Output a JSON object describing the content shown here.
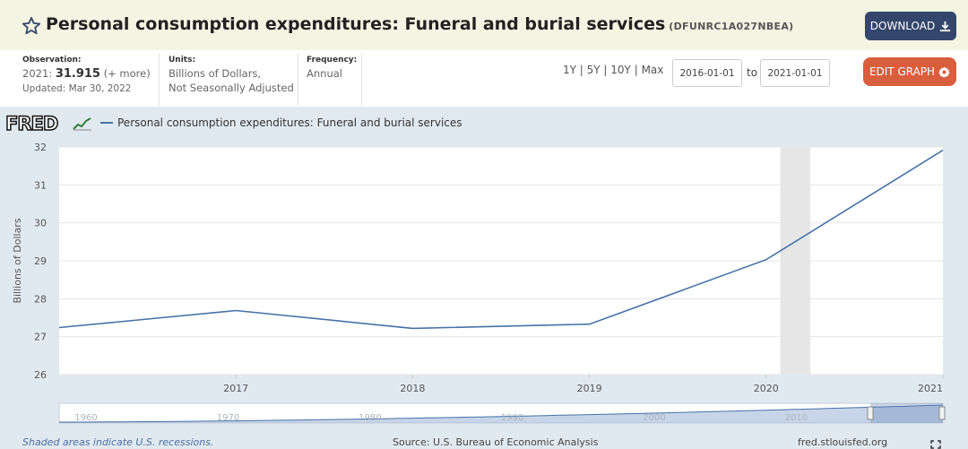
{
  "header": {
    "title": "Personal consumption expenditures: Funeral and burial services",
    "series_id": "(DFUNRC1A027NBEA)",
    "download_label": "DOWNLOAD"
  },
  "meta": {
    "observation_label": "Observation:",
    "observation_year": "2021:",
    "observation_value": "31.915",
    "observation_more": "(+ more)",
    "updated": "Updated: Mar 30, 2022",
    "units_label": "Units:",
    "units_line1": "Billions of Dollars,",
    "units_line2": "Not Seasonally Adjusted",
    "frequency_label": "Frequency:",
    "frequency_value": "Annual"
  },
  "controls": {
    "ranges": [
      "1Y",
      "5Y",
      "10Y",
      "Max"
    ],
    "start_date": "2016-01-01",
    "to_label": "to",
    "end_date": "2021-01-01",
    "edit_label": "EDIT GRAPH"
  },
  "chart_data": {
    "type": "line",
    "logo": "FRED",
    "legend": "Personal consumption expenditures: Funeral and burial services",
    "ylabel": "Billions of Dollars",
    "xlabel": "",
    "x": [
      "2016",
      "2017",
      "2018",
      "2019",
      "2020",
      "2021"
    ],
    "x_tick_labels": [
      "2017",
      "2018",
      "2019",
      "2020",
      "2021"
    ],
    "series": [
      {
        "values": [
          27.24,
          27.69,
          27.22,
          27.33,
          29.03,
          31.915
        ]
      }
    ],
    "ylim": [
      26,
      32
    ],
    "yticks": [
      26,
      27,
      28,
      29,
      30,
      31,
      32
    ],
    "recession": {
      "start": 2020.08,
      "end": 2020.25
    },
    "grid": "horizontal",
    "line_color": "#4572a7",
    "navigator": {
      "tick_labels": [
        "1960",
        "1970",
        "1980",
        "1990",
        "2000",
        "2010"
      ]
    }
  },
  "footer": {
    "note": "Shaded areas indicate U.S. recessions.",
    "source": "Source: U.S. Bureau of Economic Analysis",
    "site": "fred.stlouisfed.org"
  }
}
